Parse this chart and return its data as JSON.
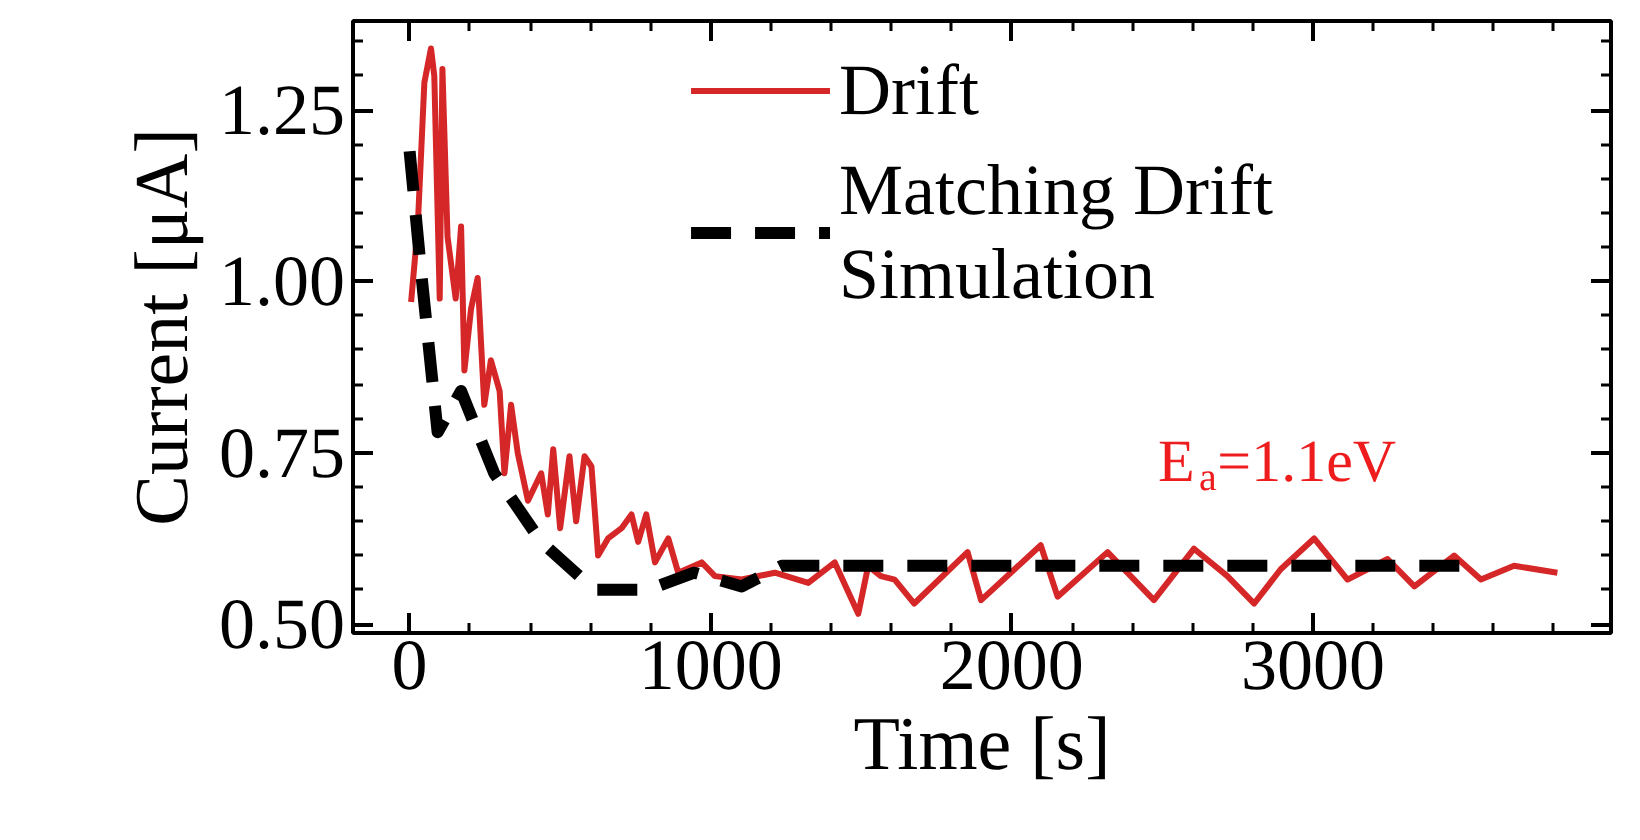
{
  "chart_data": {
    "type": "line",
    "xlabel": "Time [s]",
    "ylabel": "Current [μA]",
    "xlim": [
      -188,
      3990
    ],
    "ylim": [
      0.487,
      1.38
    ],
    "xticks": [
      0,
      1000,
      2000,
      3000
    ],
    "yticks": [
      {
        "value": 0.5,
        "label": "0.50"
      },
      {
        "value": 0.75,
        "label": "0.75"
      },
      {
        "value": 1.0,
        "label": "1.00"
      },
      {
        "value": 1.25,
        "label": "1.25"
      }
    ],
    "grid": false,
    "legend": "top",
    "tick_labels": "xy",
    "annotations": [
      "E$_{a}$=1.1eV"
    ],
    "series": [
      {
        "name": "Drift",
        "color": "#d62728",
        "line_style": "solid",
        "x": [
          5,
          27,
          49,
          71,
          82,
          100,
          109,
          126,
          153,
          171,
          182,
          204,
          226,
          248,
          270,
          299,
          315,
          337,
          359,
          393,
          437,
          459,
          477,
          500,
          531,
          553,
          581,
          604,
          626,
          659,
          704,
          737,
          759,
          786,
          815,
          859,
          892,
          970,
          1014,
          1103,
          1213,
          1324,
          1412,
          1490,
          1523,
          1565,
          1611,
          1676,
          1853,
          1898,
          2096,
          2152,
          2318,
          2472,
          2605,
          2716,
          2805,
          2893,
          3004,
          3115,
          3248,
          3337,
          3469,
          3558,
          3668,
          3812
        ],
        "values": [
          0.97,
          1.08,
          1.29,
          1.34,
          1.3,
          0.975,
          1.31,
          1.065,
          0.975,
          1.08,
          0.87,
          0.96,
          1.005,
          0.82,
          0.885,
          0.84,
          0.72,
          0.82,
          0.75,
          0.68,
          0.72,
          0.66,
          0.755,
          0.64,
          0.745,
          0.65,
          0.745,
          0.73,
          0.6,
          0.625,
          0.64,
          0.66,
          0.62,
          0.66,
          0.59,
          0.625,
          0.575,
          0.59,
          0.57,
          0.565,
          0.575,
          0.56,
          0.59,
          0.515,
          0.585,
          0.57,
          0.565,
          0.53,
          0.605,
          0.535,
          0.615,
          0.54,
          0.605,
          0.535,
          0.61,
          0.57,
          0.53,
          0.58,
          0.625,
          0.565,
          0.595,
          0.555,
          0.6,
          0.565,
          0.585,
          0.575
        ]
      },
      {
        "name": "Matching Drift Simulation",
        "color": "#000000",
        "line_style": "dashed",
        "x": [
          0,
          38,
          93,
          171,
          281,
          437,
          614,
          791,
          945,
          1103,
          1236,
          3509
        ],
        "values": [
          1.19,
          1.015,
          0.78,
          0.84,
          0.72,
          0.62,
          0.55,
          0.55,
          0.575,
          0.555,
          0.585,
          0.585
        ]
      }
    ]
  }
}
